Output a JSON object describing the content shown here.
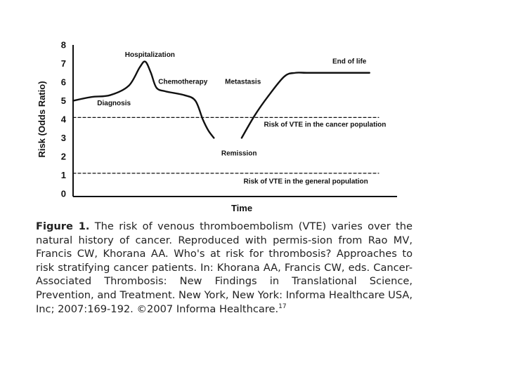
{
  "chart_data": {
    "type": "line",
    "title": "",
    "xlabel": "Time",
    "ylabel": "Risk (Odds Ratio)",
    "ylim": [
      0,
      8
    ],
    "yticks": [
      "0",
      "1",
      "2",
      "3",
      "4",
      "5",
      "6",
      "7",
      "8"
    ],
    "series": [
      {
        "name": "Risk of VTE over natural history of cancer (segment 1)",
        "x": [
          0,
          1,
          2,
          3,
          3.6,
          3.9,
          4.2,
          4.5,
          5,
          6,
          6.6,
          7,
          7.3,
          7.6
        ],
        "y": [
          5.0,
          5.2,
          5.3,
          5.8,
          6.8,
          7.1,
          6.5,
          5.7,
          5.5,
          5.3,
          5.0,
          4.0,
          3.4,
          3.0
        ]
      },
      {
        "name": "Risk of VTE over natural history of cancer (segment 2)",
        "x": [
          9.1,
          9.8,
          10.5,
          11.4,
          12,
          12.6,
          14,
          16
        ],
        "y": [
          3.0,
          4.2,
          5.2,
          6.3,
          6.5,
          6.5,
          6.5,
          6.5
        ]
      },
      {
        "name": "Risk of VTE in the cancer population",
        "style": "dashed",
        "x": [
          0,
          16.5
        ],
        "y": [
          4.1,
          4.1
        ]
      },
      {
        "name": "Risk of VTE in the general population",
        "style": "dashed",
        "x": [
          0,
          16.5
        ],
        "y": [
          1.1,
          1.1
        ]
      }
    ],
    "annotations": [
      {
        "text": "Hospitalization",
        "x": 2.8,
        "y": 7.35
      },
      {
        "text": "Chemotherapy",
        "x": 4.6,
        "y": 5.9
      },
      {
        "text": "Metastasis",
        "x": 8.2,
        "y": 5.9
      },
      {
        "text": "End of life",
        "x": 14.0,
        "y": 7.0
      },
      {
        "text": "Diagnosis",
        "x": 1.3,
        "y": 4.75
      },
      {
        "text": "Risk of VTE in the cancer population",
        "x": 10.3,
        "y": 3.6
      },
      {
        "text": "Remission",
        "x": 8.0,
        "y": 2.05
      },
      {
        "text": "Risk of VTE in the general population",
        "x": 9.2,
        "y": 0.55
      }
    ]
  },
  "caption": {
    "label": "Figure 1.",
    "text": " The risk of venous thromboembolism (VTE) varies over the natural history of cancer. Reproduced with permis-sion from Rao MV, Francis CW, Khorana AA. Who's at risk for thrombosis? Approaches to risk stratifying cancer patients. In: Khorana AA, Francis CW, eds. Cancer-Associated Thrombosis: New Findings in Translational Science, Prevention, and Treatment. New York, New York: Informa Healthcare USA, Inc; 2007:169-192. ©2007 Informa Healthcare.",
    "superscript": "17"
  }
}
